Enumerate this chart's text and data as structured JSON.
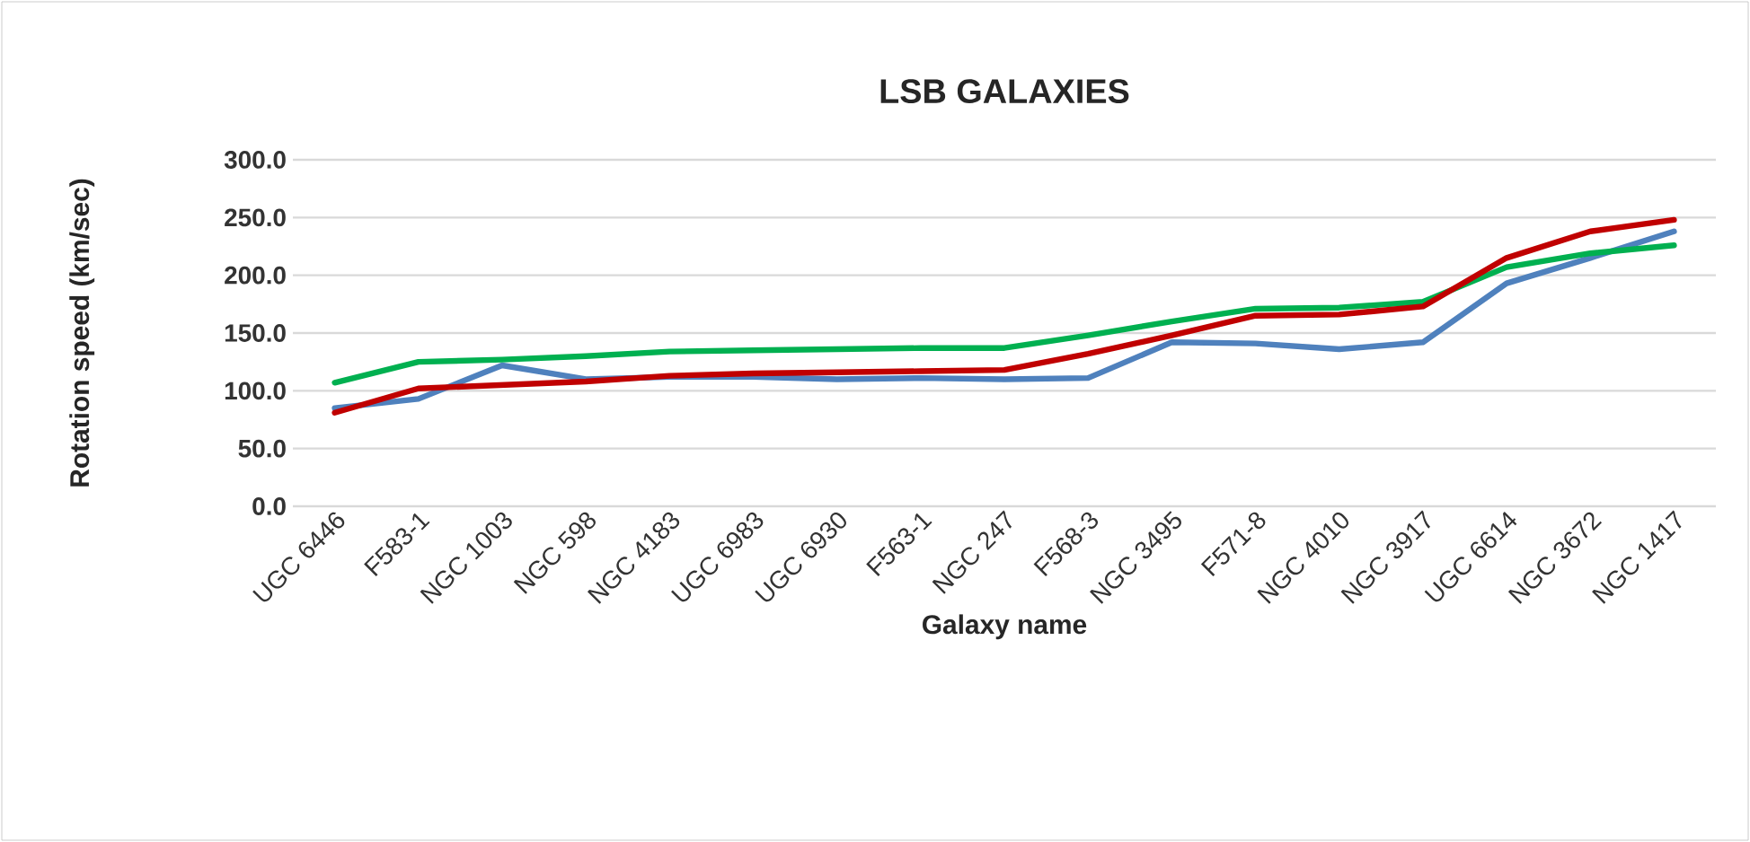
{
  "chart_data": {
    "type": "line",
    "title": "LSB GALAXIES",
    "xlabel": "Galaxy name",
    "ylabel": "Rotation speed (km/sec)",
    "categories": [
      "UGC 6446",
      "F583-1",
      "NGC 1003",
      "NGC 598",
      "NGC 4183",
      "UGC 6983",
      "UGC 6930",
      "F563-1",
      "NGC 247",
      "F568-3",
      "NGC 3495",
      "F571-8",
      "NGC 4010",
      "NGC 3917",
      "UGC 6614",
      "NGC 3672",
      "NGC 1417"
    ],
    "series": [
      {
        "color": "#4f81bd",
        "values": [
          85,
          93,
          122,
          110,
          112,
          112,
          110,
          111,
          110,
          111,
          142,
          141,
          136,
          142,
          193,
          215,
          238
        ]
      },
      {
        "color": "#00b050",
        "values": [
          107,
          125,
          127,
          130,
          134,
          135,
          136,
          137,
          137,
          148,
          160,
          171,
          172,
          177,
          207,
          219,
          226
        ]
      },
      {
        "color": "#c00000",
        "values": [
          81,
          102,
          105,
          108,
          113,
          115,
          116,
          117,
          118,
          132,
          148,
          165,
          166,
          173,
          215,
          238,
          248
        ]
      }
    ],
    "ylim": [
      0,
      300
    ],
    "yticks": [
      {
        "value": 0,
        "label": "0.0"
      },
      {
        "value": 50,
        "label": "50.0"
      },
      {
        "value": 100,
        "label": "100.0"
      },
      {
        "value": 150,
        "label": "150.0"
      },
      {
        "value": 200,
        "label": "200.0"
      },
      {
        "value": 250,
        "label": "250.0"
      },
      {
        "value": 300,
        "label": "300.0"
      }
    ],
    "grid": "y",
    "marker": "none",
    "line_style": "solid"
  }
}
